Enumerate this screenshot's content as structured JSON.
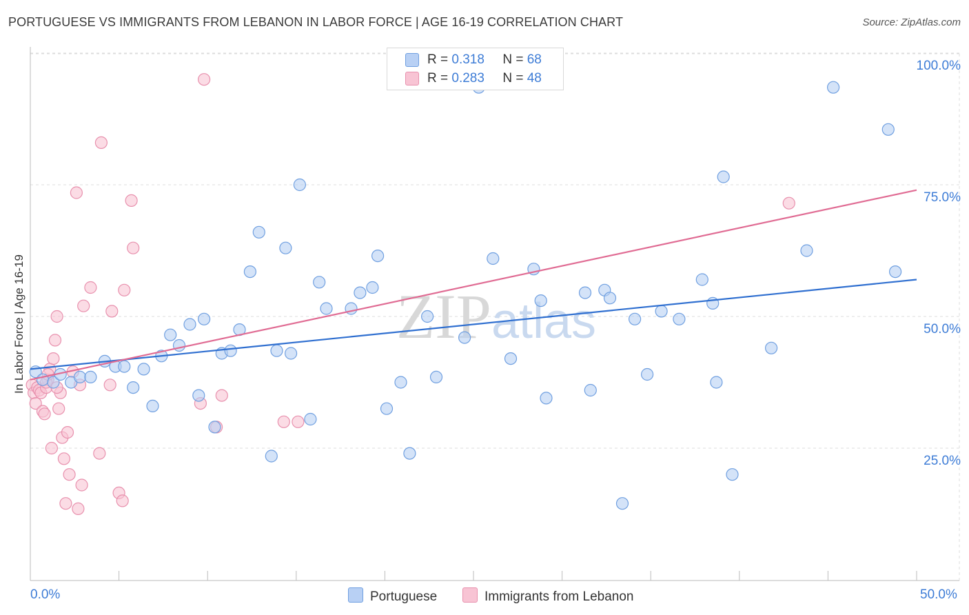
{
  "title": "PORTUGUESE VS IMMIGRANTS FROM LEBANON IN LABOR FORCE | AGE 16-19 CORRELATION CHART",
  "source": "Source: ZipAtlas.com",
  "watermark": "ZIPatlas",
  "legend": {
    "portuguese": {
      "r_label": "R =",
      "r_value": "0.318",
      "n_label": "N =",
      "n_value": "68"
    },
    "lebanon": {
      "r_label": "R =",
      "r_value": "0.283",
      "n_label": "N =",
      "n_value": "48"
    }
  },
  "colors": {
    "portuguese_fill": "#b8d0f4",
    "portuguese_stroke": "#6f9fe0",
    "portuguese_line": "#2f6fd0",
    "lebanon_fill": "#f8c4d4",
    "lebanon_stroke": "#e890ad",
    "lebanon_line": "#e06b93",
    "tick_text": "#3d7cd6"
  },
  "chart_data": {
    "type": "scatter",
    "title": "PORTUGUESE VS IMMIGRANTS FROM LEBANON IN LABOR FORCE | AGE 16-19 CORRELATION CHART",
    "xlabel": "",
    "ylabel": "In Labor Force | Age 16-19",
    "xlim": [
      0,
      50
    ],
    "ylim": [
      0,
      105
    ],
    "x_tick_labels": [
      "0.0%",
      "50.0%"
    ],
    "y_ticks": [
      25,
      50,
      75,
      100
    ],
    "y_tick_labels": [
      "25.0%",
      "50.0%",
      "75.0%",
      "100.0%"
    ],
    "grid": true,
    "legend_position": "top-center",
    "series": [
      {
        "name": "Portuguese",
        "trend": [
          [
            0,
            40.0
          ],
          [
            50,
            57.0
          ]
        ],
        "points": [
          [
            0.3,
            39.5
          ],
          [
            0.7,
            38.0
          ],
          [
            1.3,
            37.5
          ],
          [
            1.7,
            39.0
          ],
          [
            2.3,
            37.5
          ],
          [
            2.8,
            38.5
          ],
          [
            3.4,
            38.5
          ],
          [
            4.2,
            41.5
          ],
          [
            4.8,
            40.5
          ],
          [
            5.3,
            40.5
          ],
          [
            5.8,
            36.5
          ],
          [
            6.4,
            40.0
          ],
          [
            6.9,
            33.0
          ],
          [
            7.4,
            42.5
          ],
          [
            7.9,
            46.5
          ],
          [
            8.4,
            44.5
          ],
          [
            9.0,
            48.5
          ],
          [
            9.5,
            35.0
          ],
          [
            9.8,
            49.5
          ],
          [
            10.4,
            29.0
          ],
          [
            10.8,
            43.0
          ],
          [
            11.3,
            43.5
          ],
          [
            11.8,
            47.5
          ],
          [
            12.4,
            58.5
          ],
          [
            12.9,
            66.0
          ],
          [
            13.6,
            23.5
          ],
          [
            13.9,
            43.5
          ],
          [
            14.4,
            63.0
          ],
          [
            14.7,
            43.0
          ],
          [
            15.2,
            75.0
          ],
          [
            15.8,
            30.5
          ],
          [
            16.3,
            56.5
          ],
          [
            16.7,
            51.5
          ],
          [
            18.1,
            51.5
          ],
          [
            18.6,
            54.5
          ],
          [
            19.3,
            55.5
          ],
          [
            19.6,
            61.5
          ],
          [
            20.1,
            32.5
          ],
          [
            20.9,
            37.5
          ],
          [
            21.4,
            24.0
          ],
          [
            22.4,
            50.0
          ],
          [
            22.9,
            38.5
          ],
          [
            24.5,
            46.0
          ],
          [
            25.3,
            93.5
          ],
          [
            26.1,
            61.0
          ],
          [
            27.1,
            42.0
          ],
          [
            28.4,
            59.0
          ],
          [
            28.8,
            53.0
          ],
          [
            29.1,
            34.5
          ],
          [
            31.3,
            54.5
          ],
          [
            31.6,
            36.0
          ],
          [
            32.4,
            55.0
          ],
          [
            32.7,
            53.5
          ],
          [
            33.4,
            14.5
          ],
          [
            34.1,
            49.5
          ],
          [
            34.8,
            39.0
          ],
          [
            35.6,
            51.0
          ],
          [
            36.6,
            49.5
          ],
          [
            37.9,
            57.0
          ],
          [
            38.5,
            52.5
          ],
          [
            38.7,
            37.5
          ],
          [
            39.1,
            76.5
          ],
          [
            39.6,
            20.0
          ],
          [
            41.8,
            44.0
          ],
          [
            43.8,
            62.5
          ],
          [
            45.3,
            93.5
          ],
          [
            48.4,
            85.5
          ],
          [
            48.8,
            58.5
          ]
        ]
      },
      {
        "name": "Immigrants from Lebanon",
        "trend": [
          [
            0,
            38.0
          ],
          [
            50,
            74.0
          ]
        ],
        "points": [
          [
            0.1,
            37.0
          ],
          [
            0.2,
            35.5
          ],
          [
            0.3,
            33.5
          ],
          [
            0.4,
            36.5
          ],
          [
            0.5,
            36.0
          ],
          [
            0.6,
            35.5
          ],
          [
            0.7,
            32.0
          ],
          [
            0.8,
            31.5
          ],
          [
            0.9,
            36.5
          ],
          [
            1.0,
            38.0
          ],
          [
            1.1,
            40.0
          ],
          [
            1.2,
            25.0
          ],
          [
            1.3,
            42.0
          ],
          [
            1.4,
            45.5
          ],
          [
            1.5,
            50.0
          ],
          [
            1.6,
            32.5
          ],
          [
            1.7,
            35.5
          ],
          [
            1.8,
            27.0
          ],
          [
            1.9,
            23.0
          ],
          [
            2.0,
            14.5
          ],
          [
            2.1,
            28.0
          ],
          [
            2.2,
            20.0
          ],
          [
            2.4,
            39.5
          ],
          [
            2.6,
            73.5
          ],
          [
            2.7,
            13.5
          ],
          [
            2.8,
            37.0
          ],
          [
            2.9,
            18.0
          ],
          [
            3.0,
            52.0
          ],
          [
            3.4,
            55.5
          ],
          [
            3.9,
            24.0
          ],
          [
            4.0,
            83.0
          ],
          [
            4.5,
            37.0
          ],
          [
            4.6,
            51.0
          ],
          [
            5.0,
            16.5
          ],
          [
            5.2,
            15.0
          ],
          [
            5.3,
            55.0
          ],
          [
            5.7,
            72.0
          ],
          [
            5.8,
            63.0
          ],
          [
            9.6,
            33.5
          ],
          [
            9.8,
            95.0
          ],
          [
            10.5,
            29.0
          ],
          [
            10.8,
            35.0
          ],
          [
            14.3,
            30.0
          ],
          [
            15.1,
            30.0
          ],
          [
            42.8,
            71.5
          ],
          [
            0.9,
            37.5
          ],
          [
            1.5,
            36.5
          ],
          [
            1.0,
            39.0
          ]
        ]
      }
    ]
  },
  "bottom_legend": {
    "portuguese": "Portuguese",
    "lebanon": "Immigrants from Lebanon"
  },
  "x_axis_labels": {
    "left": "0.0%",
    "right": "50.0%"
  }
}
